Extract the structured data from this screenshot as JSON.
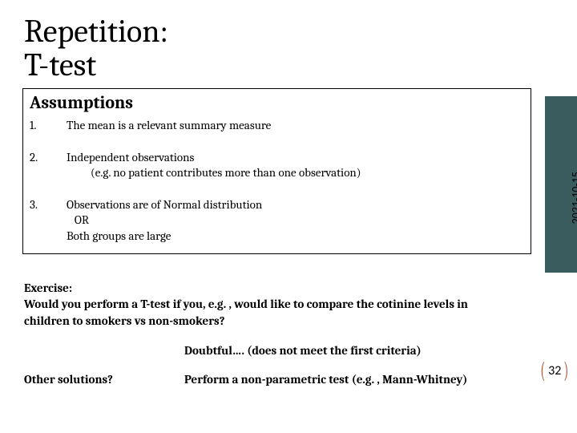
{
  "title_line1": "Repetition:",
  "title_line2": "T-test",
  "assumptions": {
    "heading": "Assumptions",
    "items": [
      {
        "num": "1.",
        "main": "The mean is a relevant summary measure",
        "sub": ""
      },
      {
        "num": "2.",
        "main": "Independent observations",
        "sub": "(e.g. no patient contributes more than one observation)"
      },
      {
        "num": "3.",
        "main": "Observations are of Normal distribution",
        "sub": "   OR\nBoth groups are large"
      }
    ]
  },
  "exercise": {
    "label": "Exercise:",
    "text": "Would you perform a T-test if you, e.g. , would like to compare the cotinine levels in children to smokers vs non-smokers?"
  },
  "answers": [
    {
      "left": "",
      "right": "Doubtful…. (does not meet the first criteria)"
    },
    {
      "left": "Other solutions?",
      "right": "Perform a non-parametric test (e.g. , Mann-Whitney)"
    }
  ],
  "date": "2021-10-15",
  "page_number": "32",
  "colors": {
    "sidebar": "#3a5c5e",
    "paren": "#a34d2c",
    "text": "#000000",
    "bg": "#ffffff"
  }
}
